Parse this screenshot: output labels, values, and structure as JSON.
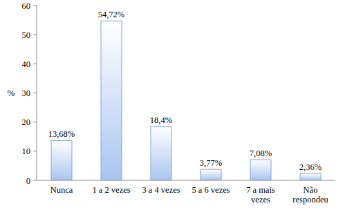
{
  "chart_data": {
    "type": "bar",
    "y_label": "%",
    "categories": [
      "Nunca",
      "1 a 2 vezes",
      "3 a 4 vezes",
      "5 a 6 vezes",
      "7 a mais vezes",
      "Não respondeu"
    ],
    "values": [
      13.68,
      54.72,
      18.4,
      3.77,
      7.08,
      2.36
    ],
    "value_labels": [
      "13,68%",
      "54,72%",
      "18,4%",
      "3,77%",
      "7,08%",
      "2,36%"
    ],
    "color": "#a9c5f0",
    "ylim": [
      0,
      60
    ],
    "yticks": [
      0,
      10,
      20,
      30,
      40,
      50,
      60
    ],
    "grid": false,
    "data_labels": true
  }
}
